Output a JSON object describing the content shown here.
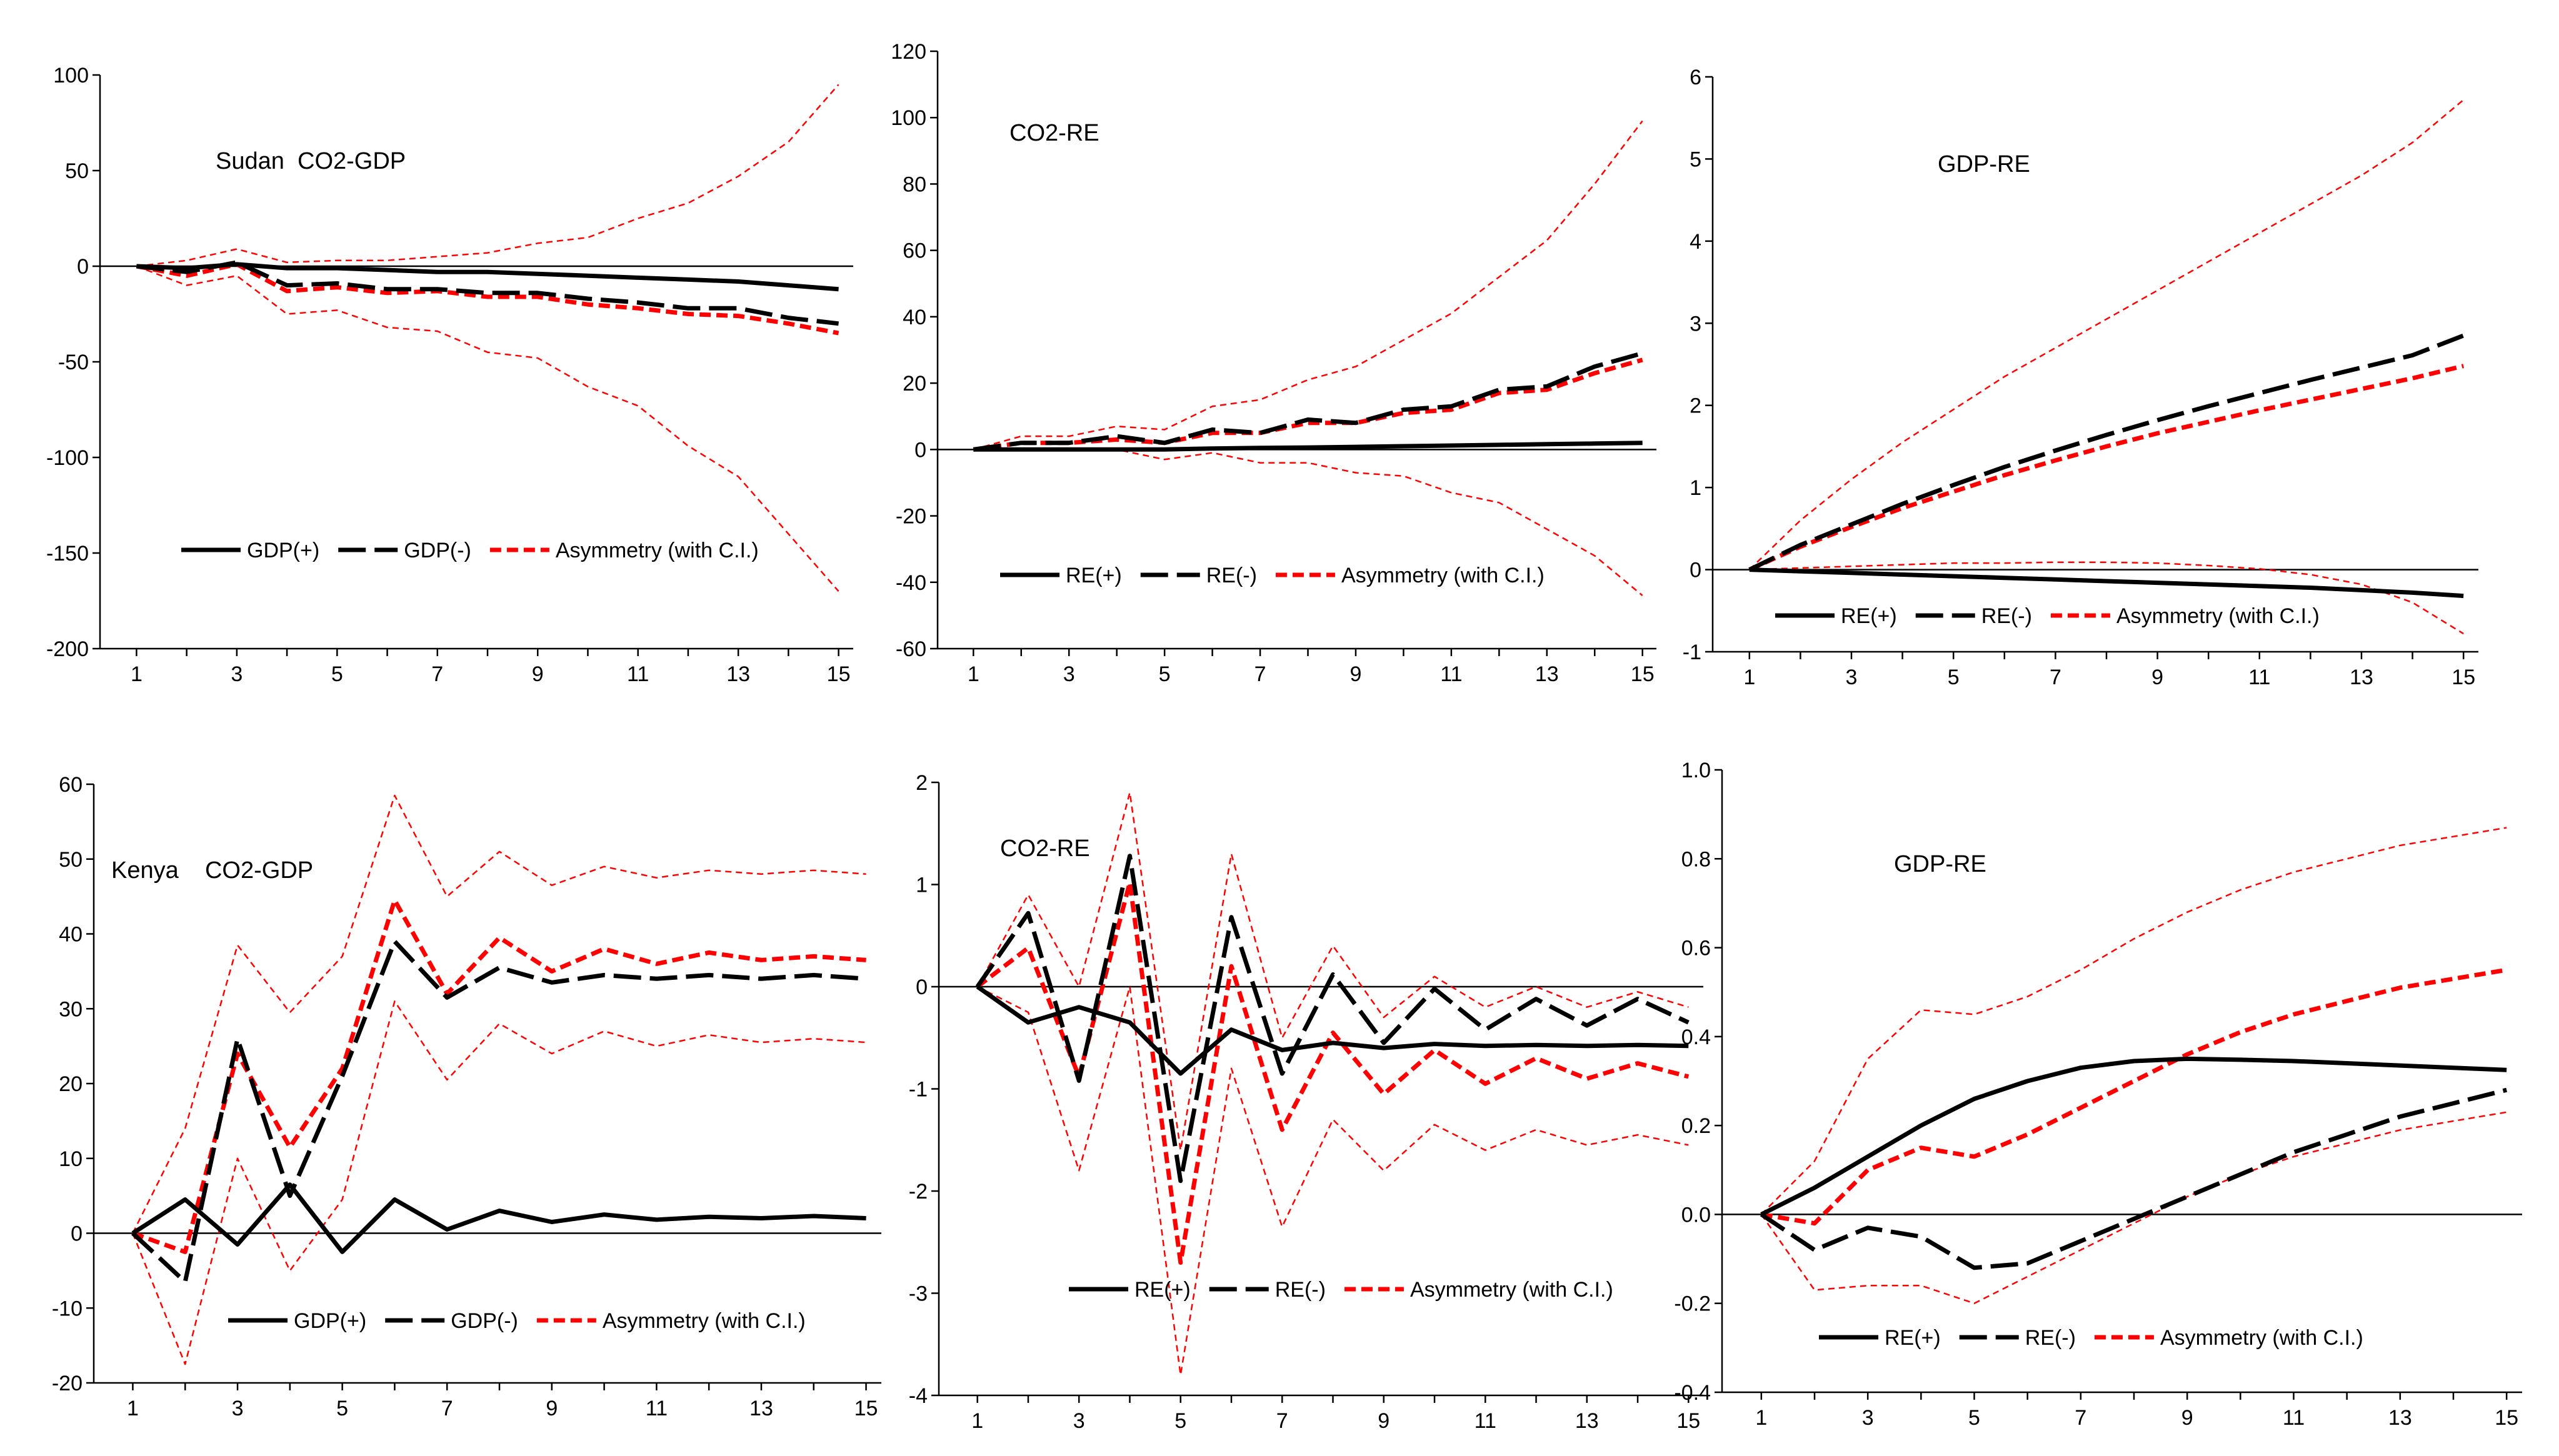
{
  "figure": {
    "description_hidden": false
  },
  "legend_styles": {
    "pos": {
      "color": "#000000",
      "dash": "solid",
      "width": 7
    },
    "neg": {
      "color": "#000000",
      "dash": "long",
      "width": 7
    },
    "asym": {
      "color": "#ff0000",
      "dash": "short",
      "width": 7
    },
    "ci": {
      "color": "#ff0000",
      "dash": "fine",
      "width": 2.5
    }
  },
  "chart_data": [
    {
      "type": "line",
      "title": "Sudan  CO2-GDP",
      "x": [
        1,
        2,
        3,
        4,
        5,
        6,
        7,
        8,
        9,
        10,
        11,
        12,
        13,
        14,
        15
      ],
      "xticks": [
        1,
        3,
        5,
        7,
        9,
        11,
        13,
        15
      ],
      "ylim": [
        -200,
        100
      ],
      "yticks": [
        -200,
        -150,
        -100,
        -50,
        0,
        50,
        100
      ],
      "ytick_labels": [
        "-200",
        "-150",
        "-100",
        "-50",
        "0",
        "50",
        "100"
      ],
      "legend": [
        "GDP(+)",
        "GDP(-)",
        "Asymmetry (with C.I.)"
      ],
      "series": [
        {
          "name": "GDP(+)",
          "style": "pos",
          "values": [
            0,
            -1,
            1,
            -1,
            -1,
            -2,
            -3,
            -3,
            -4,
            -5,
            -6,
            -7,
            -8,
            -10,
            -12
          ]
        },
        {
          "name": "GDP(-)",
          "style": "neg",
          "values": [
            0,
            -3,
            2,
            -10,
            -9,
            -12,
            -12,
            -14,
            -14,
            -17,
            -19,
            -22,
            -22,
            -27,
            -30
          ]
        },
        {
          "name": "Asymmetry (with C.I.)",
          "style": "asym",
          "values": [
            0,
            -5,
            1,
            -13,
            -11,
            -14,
            -13,
            -16,
            -16,
            -20,
            -22,
            -25,
            -26,
            -30,
            -35
          ]
        },
        {
          "name": "CI upper",
          "style": "ci",
          "values": [
            0,
            3,
            9,
            2,
            3,
            3,
            5,
            7,
            12,
            15,
            25,
            33,
            47,
            65,
            95
          ]
        },
        {
          "name": "CI lower",
          "style": "ci",
          "values": [
            0,
            -10,
            -5,
            -25,
            -23,
            -32,
            -34,
            -45,
            -48,
            -63,
            -73,
            -94,
            -110,
            -140,
            -170
          ]
        }
      ]
    },
    {
      "type": "line",
      "title": "CO2-RE",
      "x": [
        1,
        2,
        3,
        4,
        5,
        6,
        7,
        8,
        9,
        10,
        11,
        12,
        13,
        14,
        15
      ],
      "xticks": [
        1,
        3,
        5,
        7,
        9,
        11,
        13,
        15
      ],
      "ylim": [
        -60,
        120
      ],
      "yticks": [
        -60,
        -40,
        -20,
        0,
        20,
        40,
        60,
        80,
        100,
        120
      ],
      "ytick_labels": [
        "-60",
        "-40",
        "-20",
        "0",
        "20",
        "40",
        "60",
        "80",
        "100",
        "120"
      ],
      "legend": [
        "RE(+)",
        "RE(-)",
        "Asymmetry (with C.I.)"
      ],
      "series": [
        {
          "name": "RE(+)",
          "style": "pos",
          "values": [
            0,
            0,
            0,
            0,
            0,
            0.3,
            0.5,
            0.6,
            0.8,
            1,
            1.2,
            1.4,
            1.6,
            1.8,
            2
          ]
        },
        {
          "name": "RE(-)",
          "style": "neg",
          "values": [
            0,
            2,
            2,
            4,
            2,
            6,
            5,
            9,
            8,
            12,
            13,
            18,
            19,
            25,
            29
          ]
        },
        {
          "name": "Asymmetry (with C.I.)",
          "style": "asym",
          "values": [
            0,
            2,
            2,
            3,
            2,
            5,
            5,
            8,
            8,
            11,
            12,
            17,
            18,
            23,
            27
          ]
        },
        {
          "name": "CI upper",
          "style": "ci",
          "values": [
            0,
            4,
            4,
            7,
            6,
            13,
            15,
            21,
            25,
            33,
            41,
            52,
            63,
            80,
            99
          ]
        },
        {
          "name": "CI lower",
          "style": "ci",
          "values": [
            0,
            0,
            0,
            0,
            -3,
            -1,
            -4,
            -4,
            -7,
            -8,
            -13,
            -16,
            -24,
            -32,
            -44
          ]
        }
      ]
    },
    {
      "type": "line",
      "title": "GDP-RE",
      "x": [
        1,
        2,
        3,
        4,
        5,
        6,
        7,
        8,
        9,
        10,
        11,
        12,
        13,
        14,
        15
      ],
      "xticks": [
        1,
        3,
        5,
        7,
        9,
        11,
        13,
        15
      ],
      "ylim": [
        -1,
        6
      ],
      "yticks": [
        -1,
        0,
        1,
        2,
        3,
        4,
        5,
        6
      ],
      "ytick_labels": [
        "-1",
        "0",
        "1",
        "2",
        "3",
        "4",
        "5",
        "6"
      ],
      "legend": [
        "RE(+)",
        "RE(-)",
        "Asymmetry (with C.I.)"
      ],
      "series": [
        {
          "name": "RE(+)",
          "style": "pos",
          "values": [
            0,
            -0.02,
            -0.04,
            -0.06,
            -0.08,
            -0.1,
            -0.12,
            -0.14,
            -0.16,
            -0.18,
            -0.2,
            -0.22,
            -0.25,
            -0.28,
            -0.32
          ]
        },
        {
          "name": "RE(-)",
          "style": "neg",
          "values": [
            0,
            0.3,
            0.55,
            0.8,
            1.03,
            1.25,
            1.45,
            1.64,
            1.82,
            1.99,
            2.15,
            2.31,
            2.46,
            2.61,
            2.85
          ]
        },
        {
          "name": "Asymmetry (with C.I.)",
          "style": "asym",
          "values": [
            0,
            0.28,
            0.52,
            0.75,
            0.95,
            1.15,
            1.33,
            1.5,
            1.66,
            1.8,
            1.94,
            2.07,
            2.2,
            2.33,
            2.48
          ]
        },
        {
          "name": "CI upper",
          "style": "ci",
          "values": [
            0,
            0.6,
            1.1,
            1.55,
            1.95,
            2.35,
            2.7,
            3.05,
            3.4,
            3.75,
            4.1,
            4.45,
            4.8,
            5.2,
            5.72
          ]
        },
        {
          "name": "CI lower",
          "style": "ci",
          "values": [
            0,
            0.02,
            0.04,
            0.06,
            0.08,
            0.08,
            0.09,
            0.09,
            0.08,
            0.05,
            0.01,
            -0.06,
            -0.18,
            -0.4,
            -0.78
          ]
        }
      ]
    },
    {
      "type": "line",
      "title": "Kenya    CO2-GDP",
      "x": [
        1,
        2,
        3,
        4,
        5,
        6,
        7,
        8,
        9,
        10,
        11,
        12,
        13,
        14,
        15
      ],
      "xticks": [
        1,
        3,
        5,
        7,
        9,
        11,
        13,
        15
      ],
      "ylim": [
        -20,
        60
      ],
      "yticks": [
        -20,
        -10,
        0,
        10,
        20,
        30,
        40,
        50,
        60
      ],
      "ytick_labels": [
        "-20",
        "-10",
        "0",
        "10",
        "20",
        "30",
        "40",
        "50",
        "60"
      ],
      "legend": [
        "GDP(+)",
        "GDP(-)",
        "Asymmetry (with C.I.)"
      ],
      "series": [
        {
          "name": "GDP(+)",
          "style": "pos",
          "values": [
            0,
            4.5,
            -1.5,
            6.5,
            -2.5,
            4.5,
            0.5,
            3,
            1.5,
            2.5,
            1.8,
            2.2,
            2,
            2.3,
            2
          ]
        },
        {
          "name": "GDP(-)",
          "style": "neg",
          "values": [
            0,
            -6.5,
            26,
            5,
            21,
            39,
            31.5,
            35.5,
            33.5,
            34.5,
            34,
            34.5,
            34,
            34.5,
            34
          ]
        },
        {
          "name": "Asymmetry (with C.I.)",
          "style": "asym",
          "values": [
            0,
            -2.5,
            24,
            11.5,
            22,
            44.5,
            32,
            39.5,
            35,
            38,
            36,
            37.5,
            36.5,
            37,
            36.5
          ]
        },
        {
          "name": "CI upper",
          "style": "ci",
          "values": [
            0,
            14,
            38.5,
            29.5,
            37,
            58.5,
            45,
            51,
            46.5,
            49,
            47.5,
            48.5,
            48,
            48.5,
            48
          ]
        },
        {
          "name": "CI lower",
          "style": "ci",
          "values": [
            0,
            -17.5,
            10,
            -5,
            4.5,
            31,
            20.5,
            28,
            24,
            27,
            25,
            26.5,
            25.5,
            26,
            25.5
          ]
        }
      ]
    },
    {
      "type": "line",
      "title": "CO2-RE",
      "x": [
        1,
        2,
        3,
        4,
        5,
        6,
        7,
        8,
        9,
        10,
        11,
        12,
        13,
        14,
        15
      ],
      "xticks": [
        1,
        3,
        5,
        7,
        9,
        11,
        13,
        15
      ],
      "ylim": [
        -4,
        2
      ],
      "yticks": [
        -4,
        -3,
        -2,
        -1,
        0,
        1,
        2
      ],
      "ytick_labels": [
        "-4",
        "-3",
        "-2",
        "-1",
        "0",
        "1",
        "2"
      ],
      "legend": [
        "RE(+)",
        "RE(-)",
        "Asymmetry (with C.I.)"
      ],
      "series": [
        {
          "name": "RE(+)",
          "style": "pos",
          "values": [
            0,
            -0.35,
            -0.2,
            -0.35,
            -0.85,
            -0.42,
            -0.62,
            -0.55,
            -0.6,
            -0.56,
            -0.58,
            -0.57,
            -0.58,
            -0.57,
            -0.58
          ]
        },
        {
          "name": "RE(-)",
          "style": "neg",
          "values": [
            0,
            0.72,
            -0.92,
            1.28,
            -1.9,
            0.68,
            -0.85,
            0.12,
            -0.55,
            -0.02,
            -0.42,
            -0.12,
            -0.38,
            -0.12,
            -0.35
          ]
        },
        {
          "name": "Asymmetry (with C.I.)",
          "style": "asym",
          "values": [
            0,
            0.38,
            -0.88,
            1.02,
            -2.7,
            0.2,
            -1.4,
            -0.45,
            -1.05,
            -0.62,
            -0.95,
            -0.7,
            -0.9,
            -0.75,
            -0.88
          ]
        },
        {
          "name": "CI upper",
          "style": "ci",
          "values": [
            0,
            0.9,
            0,
            1.9,
            -1.6,
            1.3,
            -0.5,
            0.4,
            -0.3,
            0.1,
            -0.2,
            0,
            -0.2,
            -0.05,
            -0.2
          ]
        },
        {
          "name": "CI lower",
          "style": "ci",
          "values": [
            0,
            -0.25,
            -1.8,
            0,
            -3.8,
            -0.8,
            -2.35,
            -1.3,
            -1.8,
            -1.35,
            -1.6,
            -1.4,
            -1.55,
            -1.45,
            -1.55
          ]
        }
      ]
    },
    {
      "type": "line",
      "title": "GDP-RE",
      "x": [
        1,
        2,
        3,
        4,
        5,
        6,
        7,
        8,
        9,
        10,
        11,
        12,
        13,
        14,
        15
      ],
      "xticks": [
        1,
        3,
        5,
        7,
        9,
        11,
        13,
        15
      ],
      "ylim": [
        -0.4,
        1.0
      ],
      "yticks": [
        -0.4,
        -0.2,
        0,
        0.2,
        0.4,
        0.6,
        0.8,
        1.0
      ],
      "ytick_labels": [
        "-0.4",
        "-0.2",
        "0.0",
        "0.2",
        "0.4",
        "0.6",
        "0.8",
        "1.0"
      ],
      "legend": [
        "RE(+)",
        "RE(-)",
        "Asymmetry (with C.I.)"
      ],
      "series": [
        {
          "name": "RE(+)",
          "style": "pos",
          "values": [
            0,
            0.06,
            0.13,
            0.2,
            0.26,
            0.3,
            0.33,
            0.345,
            0.35,
            0.348,
            0.345,
            0.34,
            0.335,
            0.33,
            0.325
          ]
        },
        {
          "name": "RE(-)",
          "style": "neg",
          "values": [
            0,
            -0.08,
            -0.03,
            -0.05,
            -0.12,
            -0.11,
            -0.06,
            -0.01,
            0.04,
            0.09,
            0.14,
            0.18,
            0.22,
            0.25,
            0.28
          ]
        },
        {
          "name": "Asymmetry (with C.I.)",
          "style": "asym",
          "values": [
            0,
            -0.02,
            0.1,
            0.15,
            0.13,
            0.18,
            0.24,
            0.3,
            0.36,
            0.41,
            0.45,
            0.48,
            0.51,
            0.53,
            0.55
          ]
        },
        {
          "name": "CI upper",
          "style": "ci",
          "values": [
            0,
            0.12,
            0.35,
            0.46,
            0.45,
            0.49,
            0.55,
            0.62,
            0.68,
            0.73,
            0.77,
            0.8,
            0.83,
            0.85,
            0.87
          ]
        },
        {
          "name": "CI lower",
          "style": "ci",
          "values": [
            0,
            -0.17,
            -0.16,
            -0.16,
            -0.2,
            -0.14,
            -0.08,
            -0.02,
            0.04,
            0.09,
            0.13,
            0.16,
            0.19,
            0.21,
            0.23
          ]
        }
      ]
    }
  ]
}
